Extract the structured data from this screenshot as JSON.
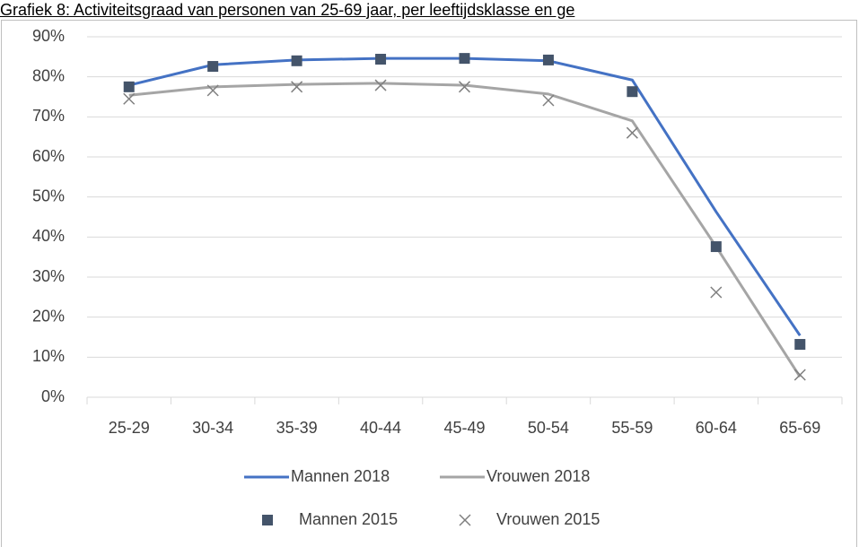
{
  "chart_data": {
    "type": "line",
    "title": "Grafiek 8: Activiteitsgraad van personen van 25-69 jaar, per leeftijdsklasse en ge",
    "categories": [
      "25-29",
      "30-34",
      "35-39",
      "40-44",
      "45-49",
      "50-54",
      "55-59",
      "60-64",
      "65-69"
    ],
    "series": [
      {
        "name": "Mannen 2018",
        "color": "#4472c4",
        "mode": "line",
        "values": [
          77.9,
          83.0,
          84.2,
          84.6,
          84.6,
          84.0,
          79.2,
          46.3,
          15.4
        ]
      },
      {
        "name": "Vrouwen 2018",
        "color": "#a5a5a5",
        "mode": "line",
        "values": [
          75.4,
          77.5,
          78.1,
          78.4,
          77.9,
          75.7,
          69.0,
          37.6,
          5.1
        ]
      },
      {
        "name": "Mannen 2015",
        "color": "#44546a",
        "mode": "markers",
        "marker": "square",
        "values": [
          77.5,
          82.6,
          84.0,
          84.4,
          84.6,
          84.2,
          76.3,
          37.6,
          13.2
        ]
      },
      {
        "name": "Vrouwen 2015",
        "color": "#7f7f7f",
        "mode": "markers",
        "marker": "x",
        "values": [
          74.5,
          76.6,
          77.5,
          77.9,
          77.5,
          74.1,
          66.0,
          26.2,
          5.6
        ]
      }
    ],
    "ylim": [
      0,
      90
    ],
    "yticks": [
      {
        "value": 0,
        "label": "0%"
      },
      {
        "value": 10,
        "label": "10%"
      },
      {
        "value": 20,
        "label": "20%"
      },
      {
        "value": 30,
        "label": "30%"
      },
      {
        "value": 40,
        "label": "40%"
      },
      {
        "value": 50,
        "label": "50%"
      },
      {
        "value": 60,
        "label": "60%"
      },
      {
        "value": 70,
        "label": "70%"
      },
      {
        "value": 80,
        "label": "80%"
      },
      {
        "value": 90,
        "label": "90%"
      }
    ],
    "grid": true
  }
}
